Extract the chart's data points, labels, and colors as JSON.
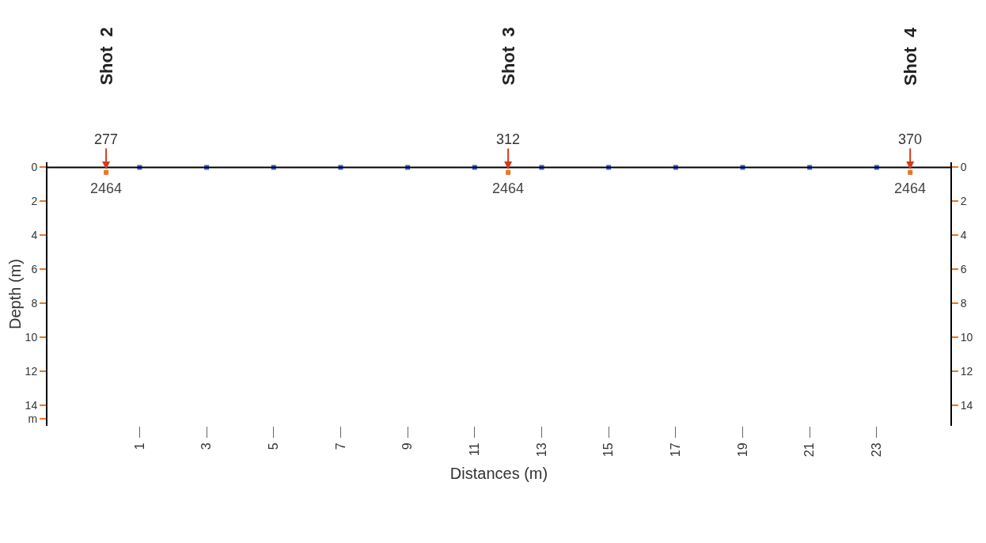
{
  "chart_data": {
    "type": "scatter",
    "xlabel": "Distances (m)",
    "ylabel": "Depth (m)",
    "xlim": [
      -1.75,
      25.2
    ],
    "xticks": [
      1,
      3,
      5,
      7,
      9,
      11,
      13,
      15,
      17,
      19,
      21,
      23
    ],
    "ylim": [
      15.2,
      -0.3
    ],
    "yticks": [
      0,
      2,
      4,
      6,
      8,
      10,
      12,
      14,
      {
        "value": 14.8,
        "label": "m"
      }
    ],
    "y2lim": [
      15.2,
      -0.3
    ],
    "y2ticks": [
      0,
      2,
      4,
      6,
      8,
      10,
      12,
      14
    ],
    "grid": false,
    "marker": "square",
    "series": [
      {
        "color": "#3b5bdb",
        "x": [
          1,
          3,
          5,
          7,
          9,
          11,
          13,
          15,
          17,
          19,
          21,
          23
        ],
        "values": [
          0,
          0,
          0,
          0,
          0,
          0,
          0,
          0,
          0,
          0,
          0,
          0
        ]
      },
      {
        "color": "#e87722",
        "x": [
          0,
          12,
          24
        ],
        "values": [
          0.3,
          0.3,
          0.3
        ]
      }
    ],
    "ref_lines": [
      {
        "axis": "y",
        "value": 0,
        "color": "#000000"
      }
    ],
    "annotations": [
      "Shot  2",
      "Shot  3",
      "Shot  4",
      {
        "text": "277",
        "x": 0,
        "y": 0.3
      },
      {
        "text": "312",
        "x": 12,
        "y": 0.3
      },
      {
        "text": "370",
        "x": 24,
        "y": 0.3
      },
      {
        "text": "2464",
        "x": 0,
        "y": 0.3
      },
      {
        "text": "2464",
        "x": 12,
        "y": 0.3
      },
      {
        "text": "2464",
        "x": 24,
        "y": 0.3
      }
    ]
  }
}
